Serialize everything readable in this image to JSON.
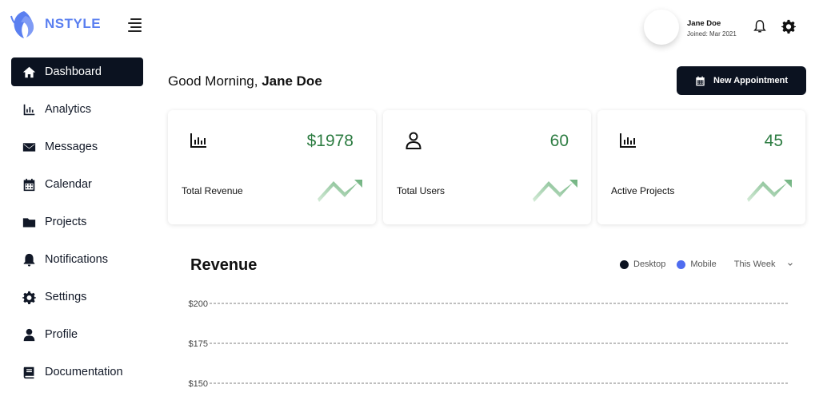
{
  "brand": {
    "name": "NSTYLE"
  },
  "sidebar": {
    "items": [
      {
        "label": "Dashboard",
        "icon": "home-icon",
        "active": true
      },
      {
        "label": "Analytics",
        "icon": "bar-chart-icon"
      },
      {
        "label": "Messages",
        "icon": "envelope-icon"
      },
      {
        "label": "Calendar",
        "icon": "calendar-icon"
      },
      {
        "label": "Projects",
        "icon": "folder-icon"
      },
      {
        "label": "Notifications",
        "icon": "bell-icon"
      },
      {
        "label": "Settings",
        "icon": "gear-icon"
      },
      {
        "label": "Profile",
        "icon": "user-icon"
      },
      {
        "label": "Documentation",
        "icon": "book-icon"
      }
    ]
  },
  "header": {
    "user_name": "Jane Doe",
    "user_joined": "Joined: Mar 2021"
  },
  "main": {
    "greeting_prefix": "Good Morning, ",
    "greeting_name": "Jane Doe",
    "new_appointment_label": "New Appointment",
    "cards": [
      {
        "label": "Total Revenue",
        "value": "$1978",
        "icon": "bar-chart-icon"
      },
      {
        "label": "Total Users",
        "value": "60",
        "icon": "user-outline-icon"
      },
      {
        "label": "Active Projects",
        "value": "45",
        "icon": "bar-chart-icon"
      }
    ],
    "revenue": {
      "title": "Revenue",
      "legend_desktop": "Desktop",
      "legend_mobile": "Mobile",
      "range": "This Week"
    }
  },
  "colors": {
    "accent_dark": "#0b1220",
    "brand": "#5a7ff0",
    "positive": "#2e7d43",
    "mobile": "#4f6cf0"
  },
  "chart_data": {
    "type": "line",
    "title": "Revenue",
    "series": [
      {
        "name": "Desktop",
        "values": []
      },
      {
        "name": "Mobile",
        "values": []
      }
    ],
    "y_ticks": [
      "$200",
      "$175",
      "$150"
    ],
    "y_values": [
      200,
      175,
      150
    ],
    "grid": true,
    "legend": "top-right"
  }
}
